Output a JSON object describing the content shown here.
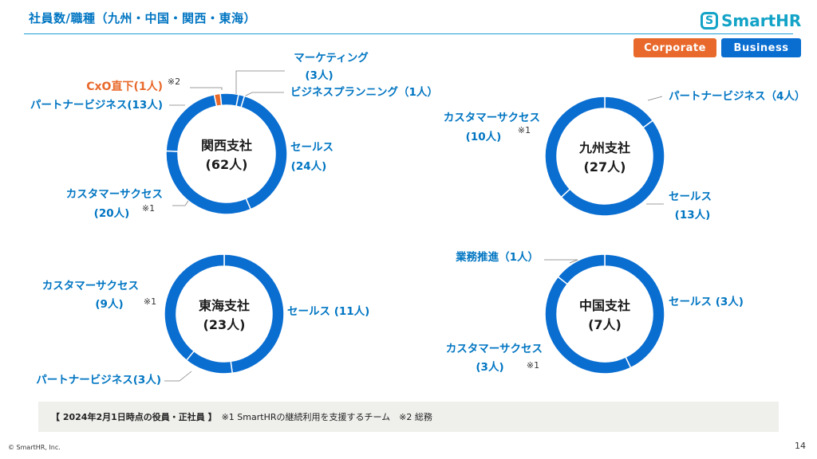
{
  "header": {
    "title": "社員数/職種（九州・中国・関西・東海）",
    "logo_text": "SmartHR",
    "logo_icon": "smarthr-s-icon"
  },
  "legend_tags": {
    "corporate": "Corporate",
    "business": "Business"
  },
  "colors": {
    "business": "#0a6ed1",
    "corporate": "#e8692b",
    "accent_text": "#0075c2"
  },
  "footer": {
    "date_note": "【 2024年2月1日時点の役員・正社員 】",
    "notes": "※1 SmartHRの継続利用を支援するチーム　※2 総務",
    "copyright": "© SmartHR, Inc.",
    "page": "14"
  },
  "chart_data": [
    {
      "type": "pie",
      "title": "関西支社",
      "total": "(62人)",
      "slices": [
        {
          "name": "マーケティング",
          "value": 3,
          "label_line1": "マーケティング",
          "label_line2": "(3人)",
          "group": "business"
        },
        {
          "name": "ビジネスプランニング",
          "value": 1,
          "label_line1": "ビジネスプランニング（1人）",
          "group": "business"
        },
        {
          "name": "セールス",
          "value": 24,
          "label_line1": "セールス",
          "label_line2": "(24人)",
          "group": "business"
        },
        {
          "name": "カスタマーサクセス",
          "value": 20,
          "label_line1": "カスタマーサクセス",
          "label_line2": "(20人)",
          "note": "※1",
          "group": "business"
        },
        {
          "name": "パートナービジネス",
          "value": 13,
          "label_line1": "パートナービジネス(13人)",
          "group": "business"
        },
        {
          "name": "CxO直下",
          "value": 1,
          "label_line1": "CxO直下(1人)",
          "note": "※2",
          "group": "corporate"
        }
      ]
    },
    {
      "type": "pie",
      "title": "九州支社",
      "total": "(27人)",
      "slices": [
        {
          "name": "パートナービジネス",
          "value": 4,
          "label_line1": "パートナービジネス（4人）",
          "group": "business"
        },
        {
          "name": "セールス",
          "value": 13,
          "label_line1": "セールス",
          "label_line2": "(13人)",
          "group": "business"
        },
        {
          "name": "カスタマーサクセス",
          "value": 10,
          "label_line1": "カスタマーサクセス",
          "label_line2": "(10人)",
          "note": "※1",
          "group": "business"
        }
      ]
    },
    {
      "type": "pie",
      "title": "東海支社",
      "total": "(23人)",
      "slices": [
        {
          "name": "セールス",
          "value": 11,
          "label_line1": "セールス (11人)",
          "group": "business"
        },
        {
          "name": "パートナービジネス",
          "value": 3,
          "label_line1": "パートナービジネス(3人)",
          "group": "business"
        },
        {
          "name": "カスタマーサクセス",
          "value": 9,
          "label_line1": "カスタマーサクセス",
          "label_line2": "(9人)",
          "note": "※1",
          "group": "business"
        }
      ]
    },
    {
      "type": "pie",
      "title": "中国支社",
      "total": "(7人)",
      "slices": [
        {
          "name": "セールス",
          "value": 3,
          "label_line1": "セールス (3人)",
          "group": "business"
        },
        {
          "name": "カスタマーサクセス",
          "value": 3,
          "label_line1": "カスタマーサクセス",
          "label_line2": "(3人)",
          "note": "※1",
          "group": "business"
        },
        {
          "name": "業務推進",
          "value": 1,
          "label_line1": "業務推進（1人）",
          "group": "business"
        }
      ]
    }
  ]
}
